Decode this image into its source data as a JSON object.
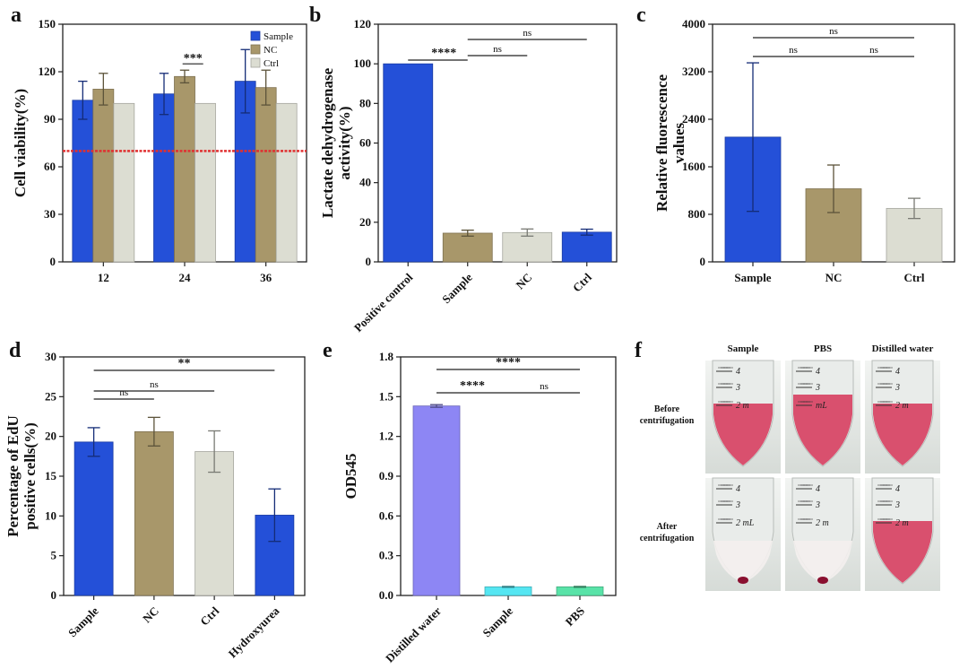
{
  "panel_letters": [
    "a",
    "b",
    "c",
    "d",
    "e",
    "f"
  ],
  "colors": {
    "sample": "#2450d8",
    "nc": "#a8976a",
    "ctrl": "#dcddd2",
    "threshold": "#e03030",
    "distilled": "#8d86f4",
    "sample_e": "#55e6f2",
    "pbs": "#59e3a8"
  },
  "chart_data": [
    {
      "panel": "a",
      "type": "bar",
      "ylabel": "Cell viability(%)",
      "xlabel": "",
      "ylim": [
        0,
        150
      ],
      "yticks": [
        0,
        30,
        60,
        90,
        120,
        150
      ],
      "categories": [
        "12",
        "24",
        "36"
      ],
      "series": [
        {
          "name": "Sample",
          "color": "#2450d8",
          "values": [
            102,
            106,
            114
          ],
          "err": [
            12,
            13,
            20
          ]
        },
        {
          "name": "NC",
          "color": "#a8976a",
          "values": [
            109,
            117,
            110
          ],
          "err": [
            10,
            4,
            11
          ]
        },
        {
          "name": "Ctrl",
          "color": "#dcddd2",
          "values": [
            100,
            100,
            100
          ],
          "err": [
            0,
            0,
            0
          ]
        }
      ],
      "threshold": 70,
      "legend": "top-right",
      "annotations": [
        {
          "text": "***",
          "category": "24"
        }
      ]
    },
    {
      "panel": "b",
      "type": "bar",
      "ylabel": "Lactate dehydrogenase activity(%)",
      "xlabel": "",
      "ylim": [
        0,
        120
      ],
      "yticks": [
        0,
        20,
        40,
        60,
        80,
        100,
        120
      ],
      "categories": [
        "Positive control",
        "Sample",
        "NC",
        "Ctrl"
      ],
      "colors": [
        "#2450d8",
        "#a8976a",
        "#dcddd2",
        "#2450d8"
      ],
      "values": [
        100,
        14.5,
        14.8,
        15
      ],
      "err": [
        0,
        1.5,
        1.8,
        1.5
      ],
      "annotations": [
        {
          "text": "****",
          "from": 0,
          "to": 1
        },
        {
          "text": "ns",
          "from": 1,
          "to": 2
        },
        {
          "text": "ns",
          "from": 1,
          "to": 3
        }
      ]
    },
    {
      "panel": "c",
      "type": "bar",
      "ylabel": "Relative fluorescence values",
      "xlabel": "",
      "ylim": [
        0,
        4000
      ],
      "yticks": [
        0,
        800,
        1600,
        2400,
        3200,
        4000
      ],
      "categories": [
        "Sample",
        "NC",
        "Ctrl"
      ],
      "colors": [
        "#2450d8",
        "#a8976a",
        "#dcddd2"
      ],
      "values": [
        2100,
        1230,
        900
      ],
      "err": [
        1250,
        400,
        170
      ],
      "annotations": [
        {
          "text": "ns",
          "from": 0,
          "to": 1
        },
        {
          "text": "ns",
          "from": 1,
          "to": 2
        },
        {
          "text": "ns",
          "from": 0,
          "to": 2
        }
      ]
    },
    {
      "panel": "d",
      "type": "bar",
      "ylabel": "Percentage of EdU positive cells(%)",
      "xlabel": "",
      "ylim": [
        0,
        30
      ],
      "yticks": [
        0,
        5,
        10,
        15,
        20,
        25,
        30
      ],
      "categories": [
        "Sample",
        "NC",
        "Ctrl",
        "Hydroxyurea"
      ],
      "colors": [
        "#2450d8",
        "#a8976a",
        "#dcddd2",
        "#2450d8"
      ],
      "values": [
        19.3,
        20.6,
        18.1,
        10.1
      ],
      "err": [
        1.8,
        1.8,
        2.6,
        3.3
      ],
      "annotations": [
        {
          "text": "ns",
          "from": 0,
          "to": 1
        },
        {
          "text": "ns",
          "from": 0,
          "to": 2
        },
        {
          "text": "**",
          "from": 0,
          "to": 3
        }
      ]
    },
    {
      "panel": "e",
      "type": "bar",
      "ylabel": "OD545",
      "xlabel": "",
      "ylim": [
        0,
        1.8
      ],
      "yticks": [
        0.0,
        0.3,
        0.6,
        0.9,
        1.2,
        1.5,
        1.8
      ],
      "ytick_labels": [
        "0.0",
        "0.3",
        "0.6",
        "0.9",
        "1.2",
        "1.5",
        "1.8"
      ],
      "categories": [
        "Distilled water",
        "Sample",
        "PBS"
      ],
      "colors": [
        "#8d86f4",
        "#55e6f2",
        "#59e3a8"
      ],
      "values": [
        1.43,
        0.065,
        0.065
      ],
      "err": [
        0.01,
        0.003,
        0.003
      ],
      "annotations": [
        {
          "text": "****",
          "from": 0,
          "to": 1
        },
        {
          "text": "ns",
          "from": 1,
          "to": 2
        },
        {
          "text": "****",
          "from": 0,
          "to": 2
        }
      ]
    }
  ],
  "photos": {
    "columns": [
      "Sample",
      "PBS",
      "Distilled water"
    ],
    "rows": [
      "Before centrifugation",
      "After centrifugation"
    ],
    "row_lines": [
      [
        "Before",
        "centrifugation"
      ],
      [
        "After",
        "centrifugation"
      ]
    ],
    "tube_marks": [
      [
        "4",
        "3",
        "2 m",
        "4",
        "3",
        "mL",
        "4",
        "3",
        "2 m"
      ],
      [
        "4",
        "3",
        "2 mL",
        "4",
        "3",
        "2 m",
        "4",
        "3",
        "2 m"
      ]
    ]
  }
}
